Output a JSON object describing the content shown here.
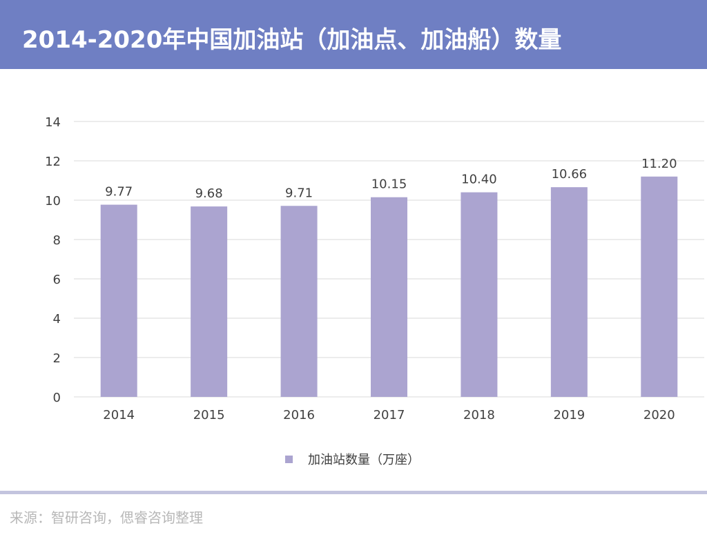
{
  "header": {
    "title": "2014-2020年中国加油站（加油点、加油船）数量"
  },
  "chart_data": {
    "type": "bar",
    "categories": [
      "2014",
      "2015",
      "2016",
      "2017",
      "2018",
      "2019",
      "2020"
    ],
    "series": [
      {
        "name": "加油站数量（万座）",
        "values": [
          9.77,
          9.68,
          9.71,
          10.15,
          10.4,
          10.66,
          11.2
        ],
        "labels": [
          "9.77",
          "9.68",
          "9.71",
          "10.15",
          "10.40",
          "10.66",
          "11.20"
        ],
        "color": "#aba4d0"
      }
    ],
    "title": "2014-2020年中国加油站（加油点、加油船）数量",
    "xlabel": "",
    "ylabel": "",
    "ylim": [
      0,
      14
    ],
    "yticks": [
      "0",
      "2",
      "4",
      "6",
      "8",
      "10",
      "12",
      "14"
    ],
    "grid": true,
    "legend_position": "bottom"
  },
  "footer": {
    "source": "来源：智研咨询，偲睿咨询整理"
  },
  "colors": {
    "header_bg": "#6f7fc3",
    "bar": "#aba4d0",
    "grid": "#d9d9d9",
    "text": "#404040",
    "divider": "#c3c4de",
    "source_text": "#b7b7b7"
  }
}
